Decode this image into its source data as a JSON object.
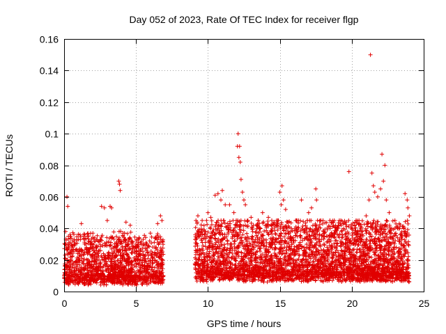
{
  "chart_data": {
    "type": "scatter",
    "title": "Day 052 of 2023, Rate Of TEC Index for receiver flgp",
    "xlabel": "GPS time / hours",
    "ylabel": "ROTI / TECUs",
    "xlim": [
      0,
      25
    ],
    "ylim": [
      0,
      0.16
    ],
    "xticks": [
      0,
      5,
      10,
      15,
      20,
      25
    ],
    "xtick_labels": [
      "0",
      "5",
      "10",
      "15",
      "20",
      "25"
    ],
    "yticks": [
      0,
      0.02,
      0.04,
      0.06,
      0.08,
      0.1,
      0.12,
      0.14,
      0.16
    ],
    "ytick_labels": [
      "0",
      "0.02",
      "0.04",
      "0.06",
      "0.08",
      "0.1",
      "0.12",
      "0.14",
      "0.16"
    ],
    "grid": true,
    "marker": "+",
    "color": "#e00000",
    "series": [
      {
        "name": "ROTI",
        "points": [
          [
            0.1,
            0.038
          ],
          [
            0.2,
            0.06
          ],
          [
            0.25,
            0.054
          ],
          [
            0.3,
            0.035
          ],
          [
            0.5,
            0.03
          ],
          [
            0.7,
            0.033
          ],
          [
            1.0,
            0.033
          ],
          [
            1.2,
            0.043
          ],
          [
            1.5,
            0.03
          ],
          [
            2.0,
            0.037
          ],
          [
            2.6,
            0.054
          ],
          [
            2.8,
            0.053
          ],
          [
            3.0,
            0.045
          ],
          [
            3.2,
            0.054
          ],
          [
            3.3,
            0.053
          ],
          [
            3.8,
            0.07
          ],
          [
            3.85,
            0.068
          ],
          [
            3.9,
            0.064
          ],
          [
            4.3,
            0.044
          ],
          [
            4.6,
            0.042
          ],
          [
            5.5,
            0.03
          ],
          [
            6.0,
            0.037
          ],
          [
            6.5,
            0.043
          ],
          [
            6.7,
            0.048
          ],
          [
            6.8,
            0.045
          ],
          [
            9.3,
            0.048
          ],
          [
            9.6,
            0.045
          ],
          [
            10.0,
            0.05
          ],
          [
            10.2,
            0.047
          ],
          [
            10.5,
            0.061
          ],
          [
            10.7,
            0.062
          ],
          [
            10.9,
            0.058
          ],
          [
            11.0,
            0.064
          ],
          [
            11.2,
            0.055
          ],
          [
            11.5,
            0.055
          ],
          [
            11.8,
            0.05
          ],
          [
            12.1,
            0.1
          ],
          [
            12.05,
            0.092
          ],
          [
            12.2,
            0.092
          ],
          [
            12.15,
            0.085
          ],
          [
            12.25,
            0.082
          ],
          [
            12.3,
            0.071
          ],
          [
            12.4,
            0.063
          ],
          [
            12.5,
            0.058
          ],
          [
            12.6,
            0.055
          ],
          [
            13.0,
            0.047
          ],
          [
            13.5,
            0.045
          ],
          [
            13.8,
            0.05
          ],
          [
            14.2,
            0.047
          ],
          [
            14.6,
            0.044
          ],
          [
            15.0,
            0.063
          ],
          [
            15.1,
            0.055
          ],
          [
            15.15,
            0.067
          ],
          [
            15.25,
            0.058
          ],
          [
            15.4,
            0.052
          ],
          [
            15.8,
            0.04
          ],
          [
            16.3,
            0.045
          ],
          [
            16.5,
            0.058
          ],
          [
            17.0,
            0.05
          ],
          [
            17.2,
            0.053
          ],
          [
            17.5,
            0.065
          ],
          [
            17.55,
            0.058
          ],
          [
            18.0,
            0.045
          ],
          [
            18.5,
            0.04
          ],
          [
            19.0,
            0.04
          ],
          [
            19.4,
            0.043
          ],
          [
            19.8,
            0.076
          ],
          [
            20.2,
            0.042
          ],
          [
            20.6,
            0.036
          ],
          [
            21.0,
            0.048
          ],
          [
            21.2,
            0.058
          ],
          [
            21.3,
            0.15
          ],
          [
            21.4,
            0.075
          ],
          [
            21.5,
            0.067
          ],
          [
            21.6,
            0.063
          ],
          [
            21.8,
            0.06
          ],
          [
            22.0,
            0.065
          ],
          [
            22.1,
            0.087
          ],
          [
            22.2,
            0.07
          ],
          [
            22.3,
            0.08
          ],
          [
            22.4,
            0.058
          ],
          [
            22.6,
            0.05
          ],
          [
            23.0,
            0.045
          ],
          [
            23.3,
            0.043
          ],
          [
            23.7,
            0.062
          ],
          [
            23.85,
            0.058
          ],
          [
            23.9,
            0.053
          ],
          [
            24.0,
            0.048
          ]
        ]
      }
    ],
    "density_bands": [
      {
        "x_start": 0.0,
        "x_end": 6.9,
        "base": 0.012,
        "spread": 0.016,
        "count": 1400
      },
      {
        "x_start": 9.1,
        "x_end": 24.0,
        "base": 0.014,
        "spread": 0.02,
        "count": 3400
      }
    ]
  }
}
